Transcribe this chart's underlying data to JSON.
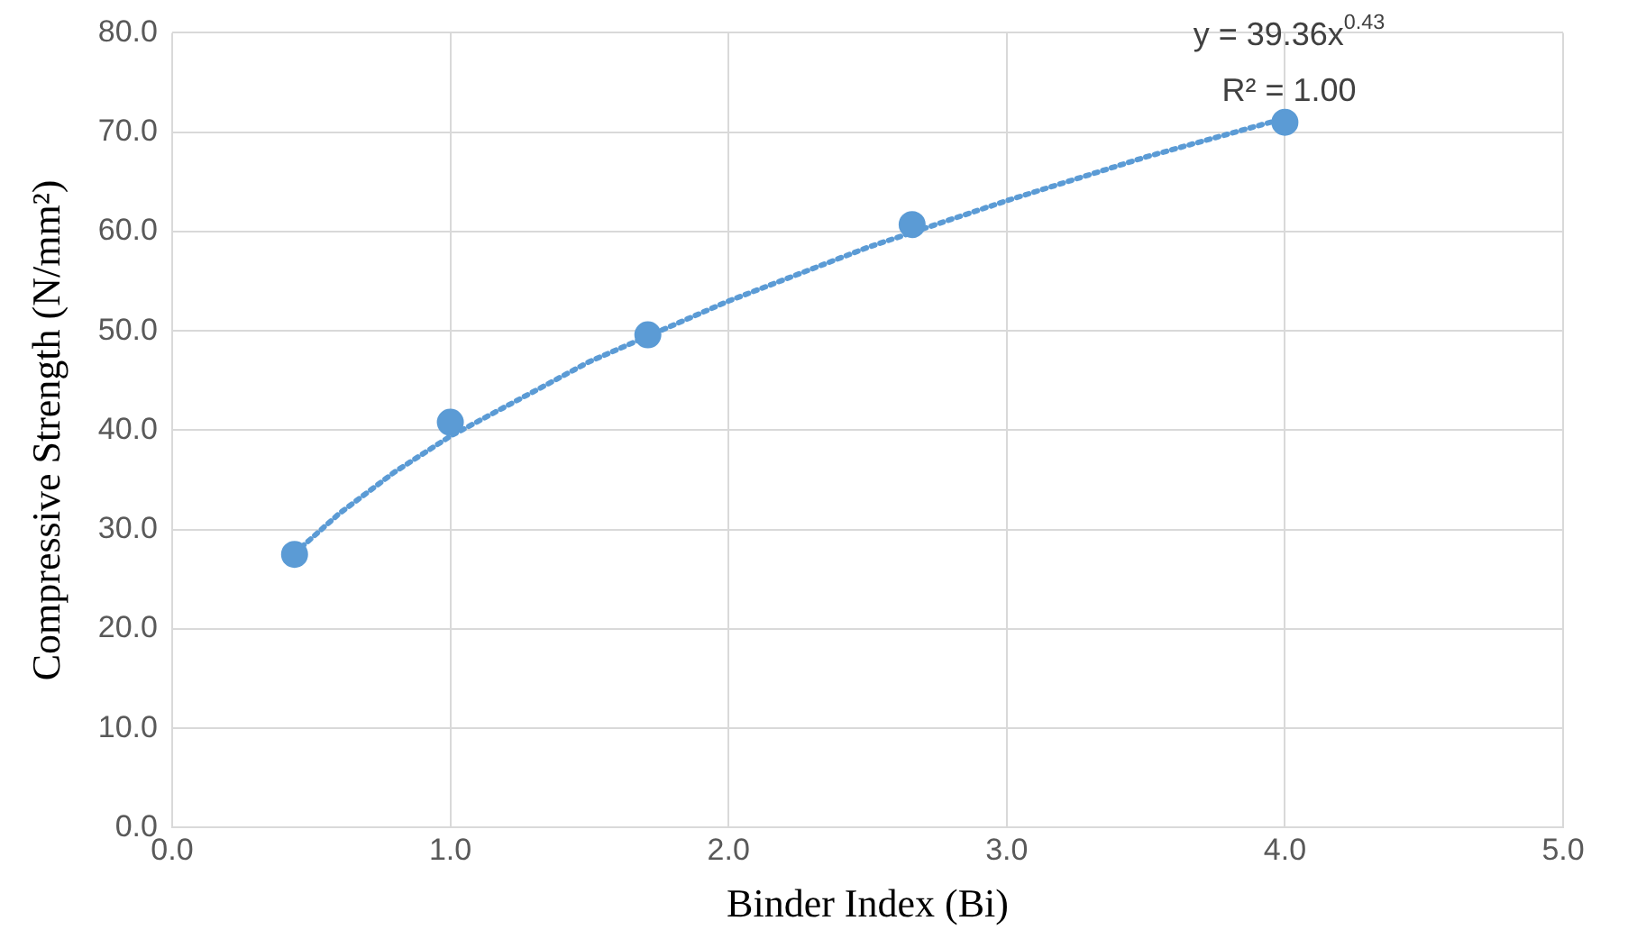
{
  "chart_data": {
    "type": "scatter",
    "xlabel": "Binder Index (Bi)",
    "ylabel": "Compressive Strength (N/mm²)",
    "xlim": [
      0,
      5
    ],
    "xticks": [
      {
        "value": 0,
        "label": "0.0"
      },
      {
        "value": 1,
        "label": "1.0"
      },
      {
        "value": 2,
        "label": "2.0"
      },
      {
        "value": 3,
        "label": "3.0"
      },
      {
        "value": 4,
        "label": "4.0"
      },
      {
        "value": 5,
        "label": "5.0"
      }
    ],
    "ylim": [
      0,
      80
    ],
    "yticks": [
      {
        "value": 0,
        "label": "0.0"
      },
      {
        "value": 10,
        "label": "10.0"
      },
      {
        "value": 20,
        "label": "20.0"
      },
      {
        "value": 30,
        "label": "30.0"
      },
      {
        "value": 40,
        "label": "40.0"
      },
      {
        "value": 50,
        "label": "50.0"
      },
      {
        "value": 60,
        "label": "60.0"
      },
      {
        "value": 70,
        "label": "70.0"
      },
      {
        "value": 80,
        "label": "80.0"
      }
    ],
    "grid": true,
    "legend": false,
    "marker": "circle",
    "series": [
      {
        "color": "#5b9bd5",
        "x": [
          0.44,
          1.0,
          1.71,
          2.66,
          4.0
        ],
        "values": [
          27.5,
          40.8,
          49.6,
          60.7,
          71.0
        ]
      },
      {
        "type": "line",
        "color": "#5b9bd5",
        "line_style": "dotted",
        "marker": "none",
        "x": [
          0.44,
          0.6,
          0.8,
          1.0,
          1.5,
          2.0,
          2.5,
          3.0,
          3.5,
          4.0
        ],
        "values": [
          27.6,
          31.6,
          35.8,
          39.4,
          46.9,
          53.0,
          58.4,
          63.1,
          67.5,
          71.4
        ]
      }
    ],
    "annotations": [
      "y = 39.36x$^{0.43}$",
      "R² = 1.00"
    ]
  }
}
